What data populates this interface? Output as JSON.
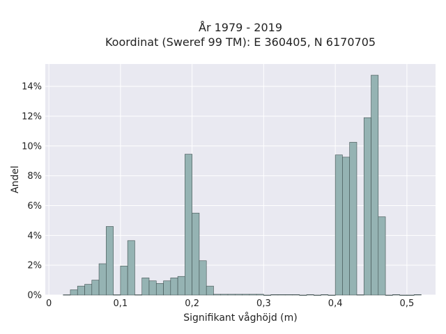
{
  "chart_data": {
    "type": "bar",
    "title": "År 1979 - 2019",
    "subtitle": "Koordinat (Sweref 99 TM): E 360405, N 6170705",
    "xlabel": "Signifikant våghöjd (m)",
    "ylabel": "Andel",
    "xlim": [
      -0.005,
      0.54
    ],
    "ylim": [
      0,
      15.5
    ],
    "bin_width": 0.01,
    "grid": true,
    "legend": "none",
    "x_ticks": [
      {
        "value": 0,
        "label": "0"
      },
      {
        "value": 0.1,
        "label": "0,1"
      },
      {
        "value": 0.2,
        "label": "0,2"
      },
      {
        "value": 0.3,
        "label": "0,3"
      },
      {
        "value": 0.4,
        "label": "0,4"
      },
      {
        "value": 0.5,
        "label": "0,5"
      }
    ],
    "y_ticks": [
      {
        "value": 0,
        "label": "0%"
      },
      {
        "value": 2,
        "label": "2%"
      },
      {
        "value": 4,
        "label": "4%"
      },
      {
        "value": 6,
        "label": "6%"
      },
      {
        "value": 8,
        "label": "8%"
      },
      {
        "value": 10,
        "label": "10%"
      },
      {
        "value": 12,
        "label": "12%"
      },
      {
        "value": 14,
        "label": "14%"
      }
    ],
    "bin_starts": [
      0.02,
      0.03,
      0.04,
      0.05,
      0.06,
      0.07,
      0.08,
      0.09,
      0.1,
      0.11,
      0.12,
      0.13,
      0.14,
      0.15,
      0.16,
      0.17,
      0.18,
      0.19,
      0.2,
      0.21,
      0.22,
      0.23,
      0.24,
      0.25,
      0.26,
      0.27,
      0.28,
      0.29,
      0.3,
      0.31,
      0.32,
      0.33,
      0.34,
      0.35,
      0.36,
      0.37,
      0.38,
      0.39,
      0.4,
      0.41,
      0.42,
      0.43,
      0.44,
      0.45,
      0.46,
      0.47,
      0.48,
      0.49,
      0.5,
      0.51
    ],
    "values": [
      0.02,
      0.35,
      0.6,
      0.72,
      1.0,
      2.1,
      4.6,
      0.02,
      1.95,
      3.65,
      0.02,
      1.15,
      0.95,
      0.78,
      0.95,
      1.15,
      1.25,
      9.45,
      5.5,
      2.3,
      0.6,
      0.05,
      0.05,
      0.05,
      0.05,
      0.05,
      0.05,
      0.05,
      0.0,
      0.03,
      0.03,
      0.03,
      0.03,
      0.0,
      0.03,
      0.0,
      0.03,
      0.0,
      9.4,
      9.25,
      10.25,
      0.02,
      11.9,
      14.75,
      5.25,
      0.0,
      0.03,
      0.0,
      0.0,
      0.03
    ],
    "colors": {
      "bar_fill": "#95b3b3",
      "bar_stroke": "#3f4f4f",
      "plot_bg": "#e9e9f1",
      "grid": "#ffffff"
    }
  }
}
